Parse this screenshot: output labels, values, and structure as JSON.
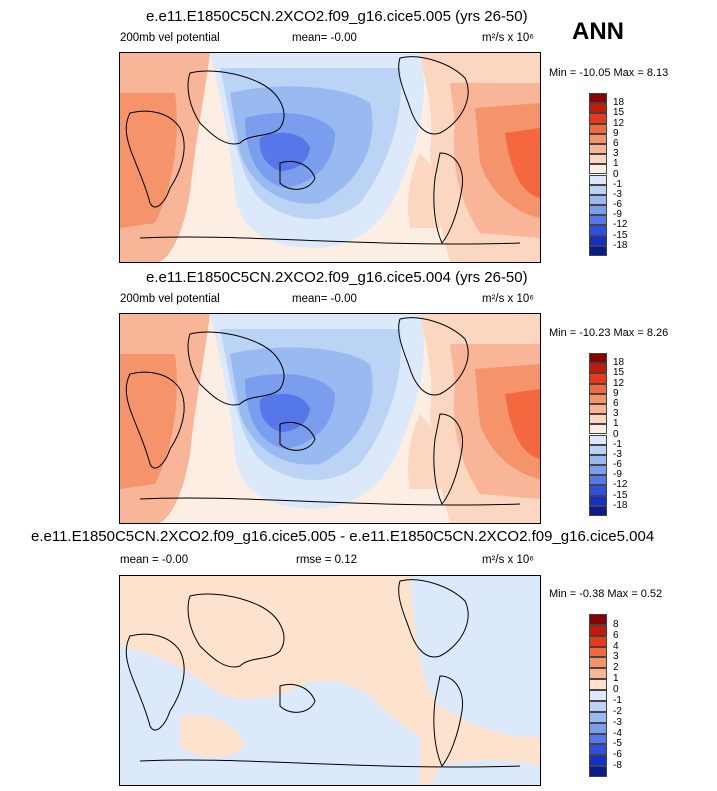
{
  "season": "ANN",
  "panels": [
    {
      "title": "e.e11.E1850C5CN.2XCO2.f09_g16.cice5.005 (yrs 26-50)",
      "left_label": "200mb vel potential",
      "center_label": "mean=  -0.00",
      "units": "m²/s x 10⁶",
      "minmax": "Min = -10.05 Max =   8.13",
      "levels": [
        "18",
        "15",
        "12",
        "9",
        "6",
        "3",
        "1",
        "0",
        "-1",
        "-3",
        "-6",
        "-9",
        "-12",
        "-15",
        "-18"
      ],
      "colors": [
        "#8b0000",
        "#c41a0a",
        "#e8391a",
        "#f4683f",
        "#f5936b",
        "#f8b597",
        "#fbd7c2",
        "#fdeee4",
        "#dbe9fb",
        "#bbd4f5",
        "#99baf0",
        "#7a9ded",
        "#5677e8",
        "#2f4fe0",
        "#1530c9",
        "#0a1a8f"
      ]
    },
    {
      "title": "e.e11.E1850C5CN.2XCO2.f09_g16.cice5.004 (yrs 26-50)",
      "left_label": "200mb vel potential",
      "center_label": "mean=  -0.00",
      "units": "m²/s x 10⁶",
      "minmax": "Min = -10.23 Max =   8.26",
      "levels": [
        "18",
        "15",
        "12",
        "9",
        "6",
        "3",
        "1",
        "0",
        "-1",
        "-3",
        "-6",
        "-9",
        "-12",
        "-15",
        "-18"
      ],
      "colors": [
        "#8b0000",
        "#c41a0a",
        "#e8391a",
        "#f4683f",
        "#f5936b",
        "#f8b597",
        "#fbd7c2",
        "#fdeee4",
        "#dbe9fb",
        "#bbd4f5",
        "#99baf0",
        "#7a9ded",
        "#5677e8",
        "#2f4fe0",
        "#1530c9",
        "#0a1a8f"
      ]
    },
    {
      "title": "e.e11.E1850C5CN.2XCO2.f09_g16.cice5.005 - e.e11.E1850C5CN.2XCO2.f09_g16.cice5.004",
      "left_label": "mean =  -0.00",
      "center_label": "rmse =   0.12",
      "units": "m²/s x 10⁶",
      "minmax": "Min =  -0.38 Max =   0.52",
      "levels": [
        "8",
        "6",
        "4",
        "3",
        "2",
        "1",
        "0",
        "-1",
        "-2",
        "-3",
        "-4",
        "-5",
        "-6",
        "-8"
      ],
      "colors": [
        "#8b0000",
        "#c41a0a",
        "#e8391a",
        "#f4683f",
        "#f5936b",
        "#f8b597",
        "#fde2cd",
        "#dbe9fb",
        "#bbd4f5",
        "#99baf0",
        "#7a9ded",
        "#5677e8",
        "#2f4fe0",
        "#1530c9",
        "#0a1a8f"
      ]
    }
  ]
}
